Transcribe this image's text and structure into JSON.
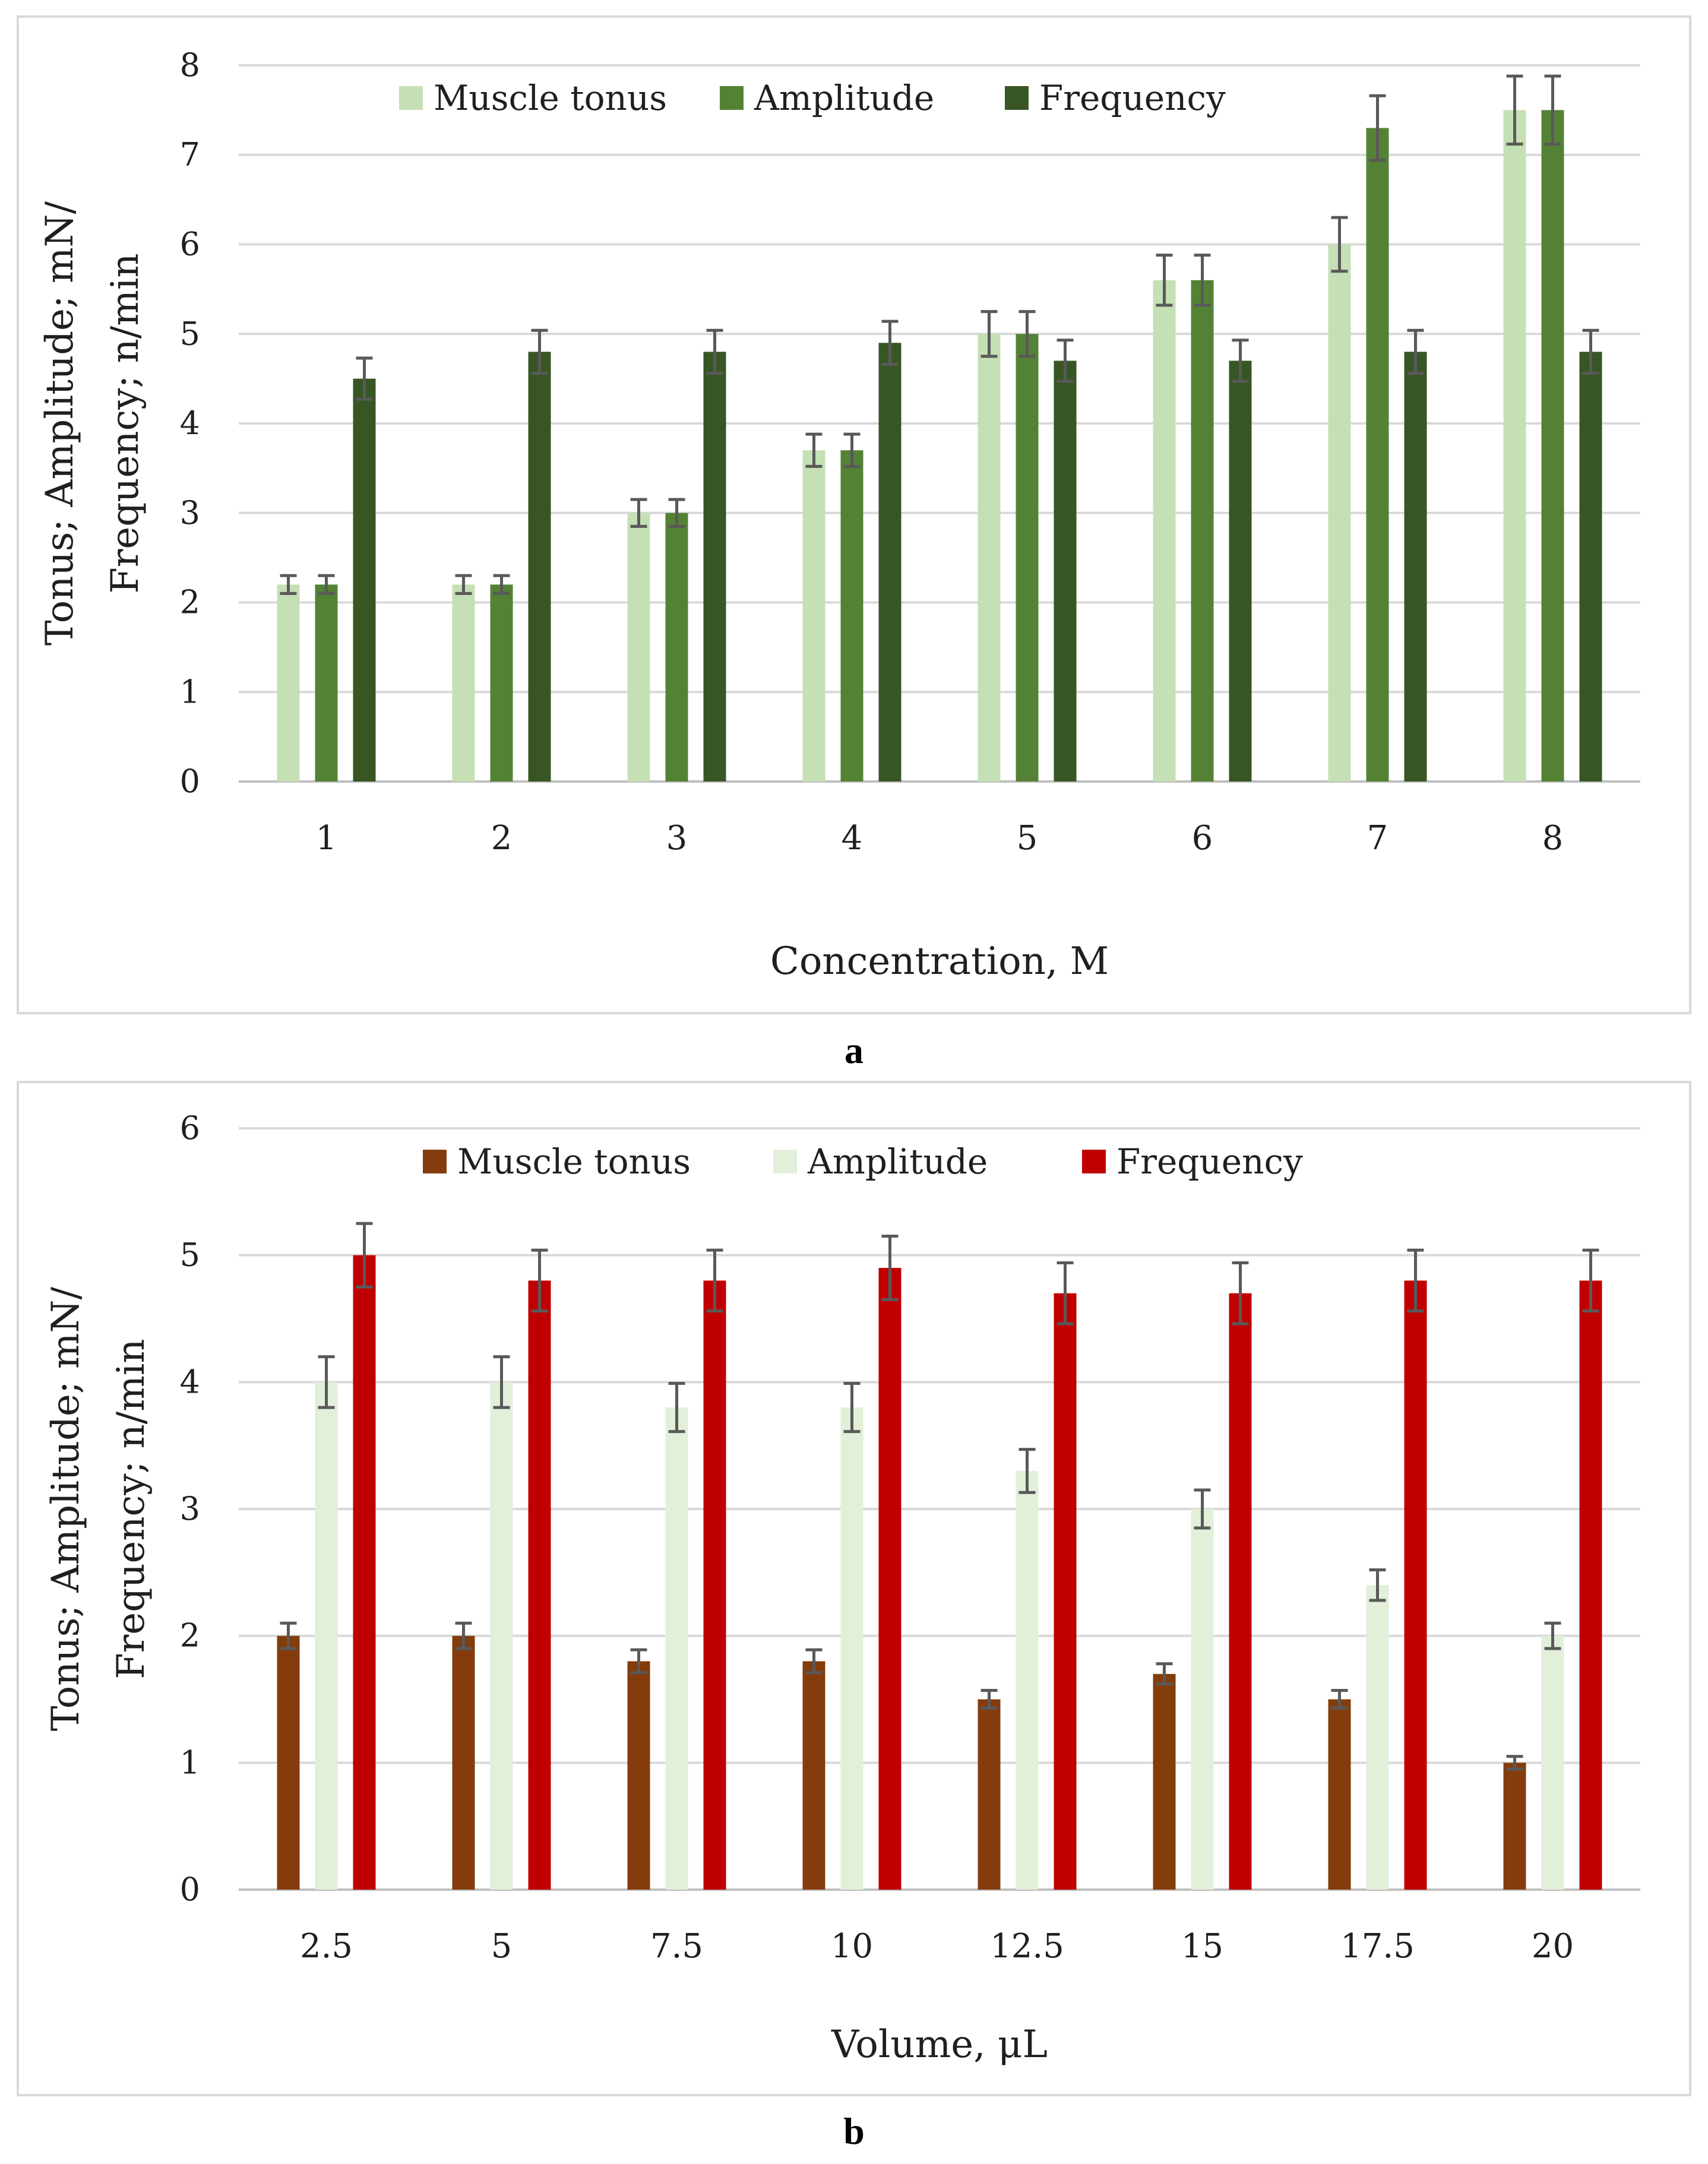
{
  "chart_data": [
    {
      "type": "bar",
      "panel_label": "a",
      "categories": [
        "1",
        "2",
        "3",
        "4",
        "5",
        "6",
        "7",
        "8"
      ],
      "series": [
        {
          "name": "Muscle tonus",
          "color": "#c5e0b4",
          "values": [
            2.2,
            2.2,
            3.0,
            3.7,
            5.0,
            5.6,
            6.0,
            7.5
          ],
          "errors": [
            0.1,
            0.1,
            0.15,
            0.18,
            0.25,
            0.28,
            0.3,
            0.38
          ]
        },
        {
          "name": "Amplitude",
          "color": "#548235",
          "values": [
            2.2,
            2.2,
            3.0,
            3.7,
            5.0,
            5.6,
            7.3,
            7.5
          ],
          "errors": [
            0.1,
            0.1,
            0.15,
            0.18,
            0.25,
            0.28,
            0.36,
            0.38
          ]
        },
        {
          "name": "Frequency",
          "color": "#375623",
          "values": [
            4.5,
            4.8,
            4.8,
            4.9,
            4.7,
            4.7,
            4.8,
            4.8
          ],
          "errors": [
            0.23,
            0.24,
            0.24,
            0.24,
            0.23,
            0.23,
            0.24,
            0.24
          ]
        }
      ],
      "yticks": [
        "0",
        "1",
        "2",
        "3",
        "4",
        "5",
        "6",
        "7",
        "8"
      ],
      "ylim": [
        0,
        8
      ],
      "xlabel": "Concentration, M",
      "ylabel_line1": "Tonus; Amplitude; mN/",
      "ylabel_line2": "Frequency; n/min",
      "legend_position": "top-center",
      "grid": true
    },
    {
      "type": "bar",
      "panel_label": "b",
      "categories": [
        "2.5",
        "5",
        "7.5",
        "10",
        "12.5",
        "15",
        "17.5",
        "20"
      ],
      "series": [
        {
          "name": "Muscle tonus",
          "color": "#843c0c",
          "values": [
            2.0,
            2.0,
            1.8,
            1.8,
            1.5,
            1.7,
            1.5,
            1.0
          ],
          "errors": [
            0.1,
            0.1,
            0.09,
            0.09,
            0.07,
            0.08,
            0.07,
            0.05
          ]
        },
        {
          "name": "Amplitude",
          "color": "#e2efd9",
          "values": [
            4.0,
            4.0,
            3.8,
            3.8,
            3.3,
            3.0,
            2.4,
            2.0
          ],
          "errors": [
            0.2,
            0.2,
            0.19,
            0.19,
            0.17,
            0.15,
            0.12,
            0.1
          ]
        },
        {
          "name": "Frequency",
          "color": "#c00000",
          "values": [
            5.0,
            4.8,
            4.8,
            4.9,
            4.7,
            4.7,
            4.8,
            4.8
          ],
          "errors": [
            0.25,
            0.24,
            0.24,
            0.25,
            0.24,
            0.24,
            0.24,
            0.24
          ]
        }
      ],
      "yticks": [
        "0",
        "1",
        "2",
        "3",
        "4",
        "5",
        "6"
      ],
      "ylim": [
        0,
        6
      ],
      "xlabel": "Volume, μL",
      "ylabel_line1": "Tonus; Amplitude; mN/",
      "ylabel_line2": "Frequency; n/min",
      "legend_position": "top-center",
      "grid": true
    }
  ],
  "captions": {
    "a": "a",
    "b": "b"
  },
  "colors": {
    "grid": "#d9d9d9",
    "error_bar": "#595959",
    "axis": "#bfbfbf"
  }
}
